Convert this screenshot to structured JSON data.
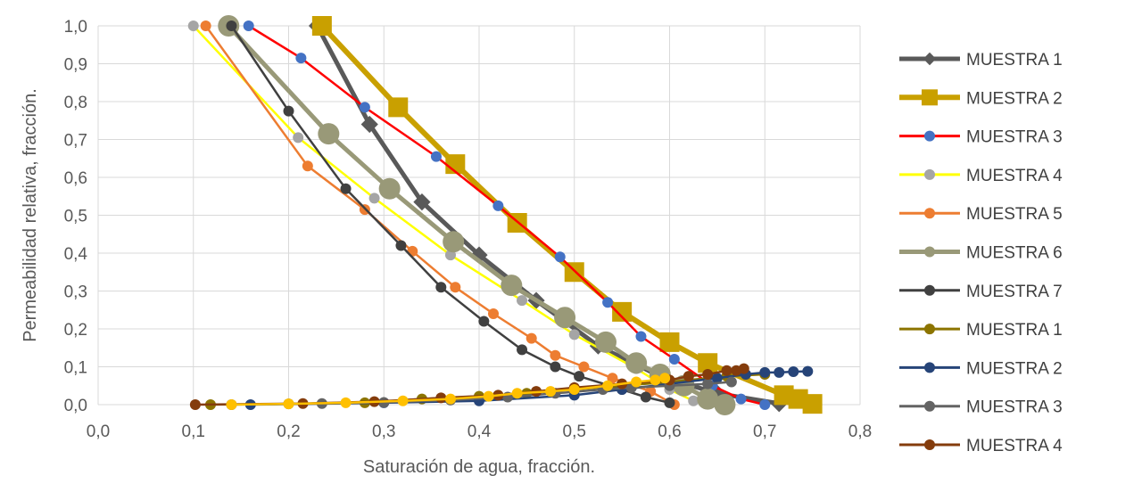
{
  "chart_data": {
    "type": "line",
    "title": "",
    "xlabel": "Saturación de agua, fracción.",
    "ylabel": "Permeabilidad relativa, fracción.",
    "xlim": [
      0,
      0.8
    ],
    "ylim": [
      0,
      1
    ],
    "x_ticks": [
      "0,0",
      "0,1",
      "0,2",
      "0,3",
      "0,4",
      "0,5",
      "0,6",
      "0,7",
      "0,8"
    ],
    "y_ticks": [
      "0,0",
      "0,1",
      "0,2",
      "0,3",
      "0,4",
      "0,5",
      "0,6",
      "0,7",
      "0,8",
      "0,9",
      "1,0"
    ],
    "grid": true,
    "legend_position": "right",
    "series": [
      {
        "name": "MUESTRA 1",
        "color": "#595959",
        "marker": "diamond",
        "line_width": 5,
        "marker_size": 8,
        "points": [
          [
            0.23,
            1.0
          ],
          [
            0.285,
            0.74
          ],
          [
            0.34,
            0.535
          ],
          [
            0.4,
            0.395
          ],
          [
            0.46,
            0.275
          ],
          [
            0.525,
            0.155
          ],
          [
            0.59,
            0.075
          ],
          [
            0.65,
            0.03
          ],
          [
            0.715,
            0.003
          ]
        ]
      },
      {
        "name": "MUESTRA 2",
        "color": "#C9A000",
        "marker": "square",
        "line_width": 6,
        "marker_size": 11,
        "points": [
          [
            0.235,
            1.0
          ],
          [
            0.315,
            0.785
          ],
          [
            0.375,
            0.635
          ],
          [
            0.44,
            0.48
          ],
          [
            0.5,
            0.35
          ],
          [
            0.55,
            0.245
          ],
          [
            0.6,
            0.165
          ],
          [
            0.64,
            0.11
          ],
          [
            0.72,
            0.025
          ],
          [
            0.735,
            0.015
          ],
          [
            0.75,
            0.002
          ]
        ]
      },
      {
        "name": "MUESTRA 3",
        "color": "#FF0000",
        "marker": "circle",
        "marker_color": "#4472C4",
        "line_width": 2.5,
        "marker_size": 6,
        "points": [
          [
            0.158,
            1.0
          ],
          [
            0.213,
            0.915
          ],
          [
            0.28,
            0.785
          ],
          [
            0.355,
            0.655
          ],
          [
            0.42,
            0.525
          ],
          [
            0.485,
            0.39
          ],
          [
            0.535,
            0.27
          ],
          [
            0.57,
            0.18
          ],
          [
            0.605,
            0.12
          ],
          [
            0.645,
            0.05
          ],
          [
            0.675,
            0.015
          ],
          [
            0.7,
            0.0
          ]
        ]
      },
      {
        "name": "MUESTRA 4",
        "color": "#FFFF00",
        "marker": "circle",
        "marker_color": "#A5A5A5",
        "line_width": 2.5,
        "marker_size": 6,
        "points": [
          [
            0.1,
            1.0
          ],
          [
            0.21,
            0.705
          ],
          [
            0.29,
            0.545
          ],
          [
            0.37,
            0.395
          ],
          [
            0.445,
            0.275
          ],
          [
            0.5,
            0.185
          ],
          [
            0.565,
            0.095
          ],
          [
            0.6,
            0.04
          ],
          [
            0.625,
            0.01
          ]
        ]
      },
      {
        "name": "MUESTRA 5",
        "color": "#ED7D31",
        "marker": "circle",
        "line_width": 2.5,
        "marker_size": 6,
        "points": [
          [
            0.113,
            1.0
          ],
          [
            0.22,
            0.63
          ],
          [
            0.28,
            0.515
          ],
          [
            0.33,
            0.405
          ],
          [
            0.375,
            0.31
          ],
          [
            0.415,
            0.24
          ],
          [
            0.455,
            0.175
          ],
          [
            0.48,
            0.13
          ],
          [
            0.51,
            0.1
          ],
          [
            0.54,
            0.07
          ],
          [
            0.58,
            0.035
          ],
          [
            0.605,
            0.0
          ]
        ]
      },
      {
        "name": "MUESTRA 6",
        "color": "#999978",
        "marker": "circle",
        "line_width": 5,
        "marker_size": 12,
        "points": [
          [
            0.137,
            1.0
          ],
          [
            0.242,
            0.715
          ],
          [
            0.306,
            0.57
          ],
          [
            0.373,
            0.43
          ],
          [
            0.434,
            0.315
          ],
          [
            0.49,
            0.23
          ],
          [
            0.533,
            0.165
          ],
          [
            0.565,
            0.11
          ],
          [
            0.59,
            0.08
          ],
          [
            0.615,
            0.05
          ],
          [
            0.64,
            0.015
          ],
          [
            0.658,
            0.0
          ]
        ]
      },
      {
        "name": "MUESTRA 7",
        "color": "#404040",
        "marker": "circle",
        "line_width": 2.5,
        "marker_size": 6,
        "points": [
          [
            0.14,
            1.0
          ],
          [
            0.2,
            0.775
          ],
          [
            0.26,
            0.57
          ],
          [
            0.318,
            0.42
          ],
          [
            0.36,
            0.31
          ],
          [
            0.405,
            0.22
          ],
          [
            0.445,
            0.145
          ],
          [
            0.48,
            0.1
          ],
          [
            0.505,
            0.075
          ],
          [
            0.55,
            0.04
          ],
          [
            0.575,
            0.02
          ],
          [
            0.6,
            0.005
          ]
        ]
      },
      {
        "name": "MUESTRA 1",
        "color": "#8C7400",
        "marker": "circle",
        "line_width": 2.5,
        "marker_size": 6,
        "points": [
          [
            0.118,
            0.0
          ],
          [
            0.2,
            0.002
          ],
          [
            0.28,
            0.005
          ],
          [
            0.34,
            0.015
          ],
          [
            0.4,
            0.022
          ],
          [
            0.45,
            0.03
          ],
          [
            0.5,
            0.04
          ],
          [
            0.55,
            0.05
          ],
          [
            0.6,
            0.06
          ],
          [
            0.66,
            0.075
          ],
          [
            0.7,
            0.08
          ]
        ]
      },
      {
        "name": "MUESTRA 2",
        "color": "#264478",
        "marker": "circle",
        "line_width": 2.5,
        "marker_size": 6,
        "points": [
          [
            0.16,
            0.0
          ],
          [
            0.3,
            0.005
          ],
          [
            0.4,
            0.01
          ],
          [
            0.5,
            0.025
          ],
          [
            0.55,
            0.04
          ],
          [
            0.6,
            0.055
          ],
          [
            0.65,
            0.07
          ],
          [
            0.68,
            0.08
          ],
          [
            0.7,
            0.085
          ],
          [
            0.715,
            0.085
          ],
          [
            0.73,
            0.087
          ],
          [
            0.745,
            0.088
          ]
        ]
      },
      {
        "name": "MUESTRA 3",
        "color": "#636363",
        "marker": "circle",
        "line_width": 2.5,
        "marker_size": 6,
        "points": [
          [
            0.14,
            0.0
          ],
          [
            0.235,
            0.003
          ],
          [
            0.3,
            0.006
          ],
          [
            0.37,
            0.012
          ],
          [
            0.43,
            0.02
          ],
          [
            0.48,
            0.03
          ],
          [
            0.53,
            0.04
          ],
          [
            0.56,
            0.045
          ],
          [
            0.6,
            0.05
          ],
          [
            0.64,
            0.055
          ],
          [
            0.665,
            0.06
          ]
        ]
      },
      {
        "name": "MUESTRA 4",
        "color": "#843C0C",
        "marker": "circle",
        "line_width": 2.5,
        "marker_size": 6,
        "points": [
          [
            0.102,
            0.0
          ],
          [
            0.215,
            0.003
          ],
          [
            0.29,
            0.008
          ],
          [
            0.36,
            0.018
          ],
          [
            0.42,
            0.025
          ],
          [
            0.46,
            0.035
          ],
          [
            0.5,
            0.045
          ],
          [
            0.55,
            0.055
          ],
          [
            0.6,
            0.065
          ],
          [
            0.62,
            0.075
          ],
          [
            0.64,
            0.08
          ],
          [
            0.66,
            0.09
          ],
          [
            0.67,
            0.09
          ],
          [
            0.678,
            0.095
          ]
        ]
      },
      {
        "name": "",
        "color": "#FFC000",
        "marker": "circle",
        "line_width": 2.5,
        "marker_size": 6,
        "points": [
          [
            0.14,
            0.0
          ],
          [
            0.2,
            0.002
          ],
          [
            0.26,
            0.005
          ],
          [
            0.32,
            0.01
          ],
          [
            0.37,
            0.015
          ],
          [
            0.41,
            0.022
          ],
          [
            0.44,
            0.03
          ],
          [
            0.475,
            0.035
          ],
          [
            0.5,
            0.04
          ],
          [
            0.535,
            0.05
          ],
          [
            0.565,
            0.06
          ],
          [
            0.585,
            0.065
          ],
          [
            0.595,
            0.07
          ]
        ]
      }
    ]
  }
}
